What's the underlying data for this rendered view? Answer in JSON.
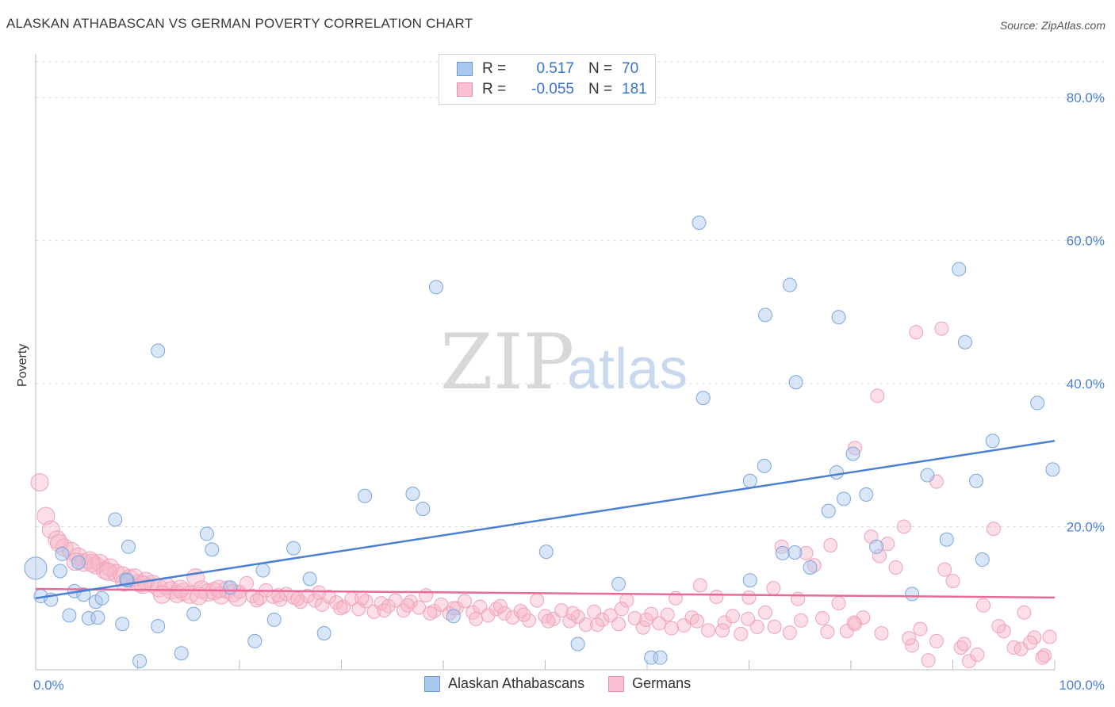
{
  "title": "ALASKAN ATHABASCAN VS GERMAN POVERTY CORRELATION CHART",
  "source": "Source: ZipAtlas.com",
  "watermark": {
    "zip": "ZIP",
    "atlas": "atlas"
  },
  "legend": {
    "series": [
      {
        "name": "Alaskan Athabascans",
        "r_label": "R =",
        "r": "0.517",
        "n_label": "N =",
        "n": "70",
        "color": "#a8c8f0",
        "stroke": "#6a9ad8"
      },
      {
        "name": "Germans",
        "r_label": "R =",
        "r": "-0.055",
        "n_label": "N =",
        "n": "181",
        "color": "#f8c0d0",
        "stroke": "#e890aa"
      }
    ]
  },
  "chart_data": {
    "type": "scatter",
    "title": "ALASKAN ATHABASCAN VS GERMAN POVERTY CORRELATION CHART",
    "xlabel": "",
    "ylabel": "Poverty",
    "xlim": [
      0,
      100
    ],
    "ylim": [
      0,
      85
    ],
    "x_tick_labels": [
      "0.0%",
      "100.0%"
    ],
    "y_ticks": [
      20,
      40,
      60,
      80
    ],
    "y_tick_labels": [
      "20.0%",
      "40.0%",
      "60.0%",
      "80.0%"
    ],
    "grid": true,
    "legend_position": "top-center",
    "series": [
      {
        "name": "Alaskan Athabascans",
        "color": "#4a7fd4",
        "trend": {
          "x": [
            0,
            100
          ],
          "y": [
            10.0,
            32.0
          ]
        },
        "points": [
          [
            0,
            14.2
          ],
          [
            0.5,
            10.3
          ],
          [
            1.5,
            9.8
          ],
          [
            2.4,
            13.8
          ],
          [
            2.6,
            16.2
          ],
          [
            3.3,
            7.6
          ],
          [
            3.8,
            11.0
          ],
          [
            4.2,
            15.0
          ],
          [
            4.7,
            10.5
          ],
          [
            5.2,
            7.2
          ],
          [
            5.9,
            9.5
          ],
          [
            6.1,
            7.3
          ],
          [
            6.5,
            10.0
          ],
          [
            7.8,
            21.0
          ],
          [
            8.5,
            6.4
          ],
          [
            9.1,
            17.2
          ],
          [
            9.0,
            12.5
          ],
          [
            10.2,
            1.2
          ],
          [
            12.0,
            44.6
          ],
          [
            12.0,
            6.1
          ],
          [
            14.3,
            2.3
          ],
          [
            15.5,
            7.8
          ],
          [
            16.8,
            19.0
          ],
          [
            17.3,
            16.8
          ],
          [
            19.1,
            11.5
          ],
          [
            21.5,
            4.0
          ],
          [
            22.3,
            13.9
          ],
          [
            23.4,
            7.0
          ],
          [
            25.3,
            17.0
          ],
          [
            26.9,
            12.7
          ],
          [
            28.3,
            5.1
          ],
          [
            32.3,
            24.3
          ],
          [
            37.0,
            24.6
          ],
          [
            38.0,
            22.5
          ],
          [
            39.3,
            53.5
          ],
          [
            41.0,
            7.5
          ],
          [
            50.1,
            16.5
          ],
          [
            53.2,
            3.6
          ],
          [
            57.2,
            12.0
          ],
          [
            60.4,
            1.7
          ],
          [
            61.3,
            1.7
          ],
          [
            65.1,
            62.5
          ],
          [
            65.5,
            38.0
          ],
          [
            70.1,
            12.5
          ],
          [
            70.1,
            26.4
          ],
          [
            71.5,
            28.5
          ],
          [
            71.6,
            49.6
          ],
          [
            73.3,
            16.3
          ],
          [
            74.0,
            53.8
          ],
          [
            74.6,
            40.2
          ],
          [
            74.5,
            16.4
          ],
          [
            76.0,
            14.3
          ],
          [
            77.8,
            22.2
          ],
          [
            78.6,
            27.6
          ],
          [
            78.8,
            49.3
          ],
          [
            79.3,
            23.9
          ],
          [
            80.2,
            30.2
          ],
          [
            81.5,
            24.5
          ],
          [
            82.5,
            17.2
          ],
          [
            86.0,
            10.6
          ],
          [
            87.5,
            27.2
          ],
          [
            89.4,
            18.2
          ],
          [
            90.6,
            56.0
          ],
          [
            91.2,
            45.8
          ],
          [
            92.3,
            26.4
          ],
          [
            92.9,
            15.4
          ],
          [
            93.9,
            32.0
          ],
          [
            98.3,
            37.3
          ],
          [
            99.8,
            28.0
          ],
          [
            8.9,
            12.6
          ]
        ]
      },
      {
        "name": "Germans",
        "color": "#e86a98",
        "trend": {
          "x": [
            0,
            100
          ],
          "y": [
            11.3,
            10.1
          ]
        },
        "points": [
          [
            0.4,
            26.2
          ],
          [
            1.0,
            21.5
          ],
          [
            1.5,
            19.6
          ],
          [
            2.1,
            18.2
          ],
          [
            2.8,
            17.1
          ],
          [
            3.5,
            16.6
          ],
          [
            4.2,
            15.8
          ],
          [
            4.7,
            15.0
          ],
          [
            5.3,
            15.3
          ],
          [
            5.9,
            14.6
          ],
          [
            6.3,
            14.9
          ],
          [
            6.8,
            13.9
          ],
          [
            7.3,
            14.3
          ],
          [
            7.9,
            13.5
          ],
          [
            8.5,
            13.2
          ],
          [
            9.2,
            12.8
          ],
          [
            9.7,
            12.9
          ],
          [
            10.2,
            12.1
          ],
          [
            10.8,
            12.4
          ],
          [
            11.5,
            12.0
          ],
          [
            12.1,
            11.4
          ],
          [
            12.8,
            11.7
          ],
          [
            13.3,
            11.1
          ],
          [
            13.9,
            10.6
          ],
          [
            14.5,
            10.9
          ],
          [
            15.1,
            10.5
          ],
          [
            15.7,
            12.9
          ],
          [
            16.3,
            11.2
          ],
          [
            16.9,
            10.8
          ],
          [
            17.5,
            11.0
          ],
          [
            18.2,
            10.4
          ],
          [
            18.8,
            11.2
          ],
          [
            19.4,
            10.7
          ],
          [
            20.0,
            10.9
          ],
          [
            20.7,
            12.1
          ],
          [
            21.3,
            10.3
          ],
          [
            22.0,
            10.0
          ],
          [
            22.6,
            11.1
          ],
          [
            23.3,
            10.2
          ],
          [
            24.0,
            9.8
          ],
          [
            24.6,
            10.6
          ],
          [
            25.3,
            10.1
          ],
          [
            26.0,
            9.5
          ],
          [
            26.7,
            10.3
          ],
          [
            27.4,
            9.7
          ],
          [
            28.1,
            9.1
          ],
          [
            28.8,
            10.2
          ],
          [
            29.5,
            9.4
          ],
          [
            30.2,
            8.8
          ],
          [
            31.0,
            9.9
          ],
          [
            31.7,
            8.5
          ],
          [
            32.4,
            9.6
          ],
          [
            33.2,
            8.1
          ],
          [
            33.9,
            9.3
          ],
          [
            34.6,
            8.9
          ],
          [
            35.3,
            9.7
          ],
          [
            36.1,
            8.3
          ],
          [
            36.8,
            9.5
          ],
          [
            37.6,
            8.7
          ],
          [
            38.3,
            10.4
          ],
          [
            39.1,
            8.2
          ],
          [
            39.8,
            9.1
          ],
          [
            40.6,
            7.9
          ],
          [
            41.3,
            8.6
          ],
          [
            42.1,
            9.6
          ],
          [
            42.9,
            8.0
          ],
          [
            43.6,
            8.8
          ],
          [
            44.4,
            7.6
          ],
          [
            45.2,
            8.5
          ],
          [
            46.0,
            7.9
          ],
          [
            46.8,
            7.3
          ],
          [
            47.6,
            8.2
          ],
          [
            48.4,
            6.9
          ],
          [
            49.2,
            9.7
          ],
          [
            50.0,
            7.5
          ],
          [
            50.8,
            7.1
          ],
          [
            51.6,
            8.3
          ],
          [
            52.4,
            6.8
          ],
          [
            53.2,
            7.4
          ],
          [
            54.0,
            6.3
          ],
          [
            54.8,
            8.1
          ],
          [
            55.6,
            7.0
          ],
          [
            56.4,
            7.6
          ],
          [
            57.2,
            6.4
          ],
          [
            58.0,
            9.7
          ],
          [
            58.8,
            7.2
          ],
          [
            59.6,
            5.9
          ],
          [
            60.4,
            7.8
          ],
          [
            61.2,
            6.5
          ],
          [
            62.0,
            7.7
          ],
          [
            62.8,
            10.0
          ],
          [
            63.6,
            6.2
          ],
          [
            64.4,
            7.3
          ],
          [
            65.2,
            11.8
          ],
          [
            66.0,
            5.5
          ],
          [
            66.8,
            10.2
          ],
          [
            67.6,
            6.6
          ],
          [
            68.4,
            7.5
          ],
          [
            69.2,
            5.0
          ],
          [
            70.0,
            10.1
          ],
          [
            70.8,
            6.0
          ],
          [
            71.6,
            8.0
          ],
          [
            72.4,
            11.4
          ],
          [
            73.2,
            17.2
          ],
          [
            74.0,
            5.2
          ],
          [
            74.8,
            9.9
          ],
          [
            75.6,
            16.3
          ],
          [
            76.4,
            14.6
          ],
          [
            77.2,
            7.2
          ],
          [
            78.0,
            17.4
          ],
          [
            78.8,
            9.3
          ],
          [
            79.6,
            5.4
          ],
          [
            80.4,
            6.4
          ],
          [
            81.2,
            7.3
          ],
          [
            82.0,
            18.6
          ],
          [
            82.8,
            15.9
          ],
          [
            83.6,
            17.6
          ],
          [
            84.4,
            14.3
          ],
          [
            85.2,
            20.0
          ],
          [
            86.0,
            3.4
          ],
          [
            86.8,
            5.7
          ],
          [
            87.6,
            1.3
          ],
          [
            88.4,
            26.3
          ],
          [
            89.2,
            14.0
          ],
          [
            90.0,
            12.4
          ],
          [
            90.8,
            3.1
          ],
          [
            91.6,
            1.2
          ],
          [
            92.4,
            2.1
          ],
          [
            93.0,
            9.0
          ],
          [
            94.0,
            19.7
          ],
          [
            95.0,
            5.4
          ],
          [
            96.0,
            3.1
          ],
          [
            97.0,
            8.0
          ],
          [
            98.0,
            4.5
          ],
          [
            99.0,
            2.0
          ],
          [
            80.4,
            31.0
          ],
          [
            82.6,
            38.3
          ],
          [
            86.4,
            47.2
          ],
          [
            88.9,
            47.7
          ],
          [
            2.3,
            17.7
          ],
          [
            3.9,
            15.1
          ],
          [
            5.5,
            14.9
          ],
          [
            7.1,
            13.7
          ],
          [
            8.7,
            12.2
          ],
          [
            10.5,
            11.9
          ],
          [
            12.4,
            10.5
          ],
          [
            14.2,
            11.3
          ],
          [
            16.0,
            10.3
          ],
          [
            18.0,
            11.3
          ],
          [
            19.8,
            10.1
          ],
          [
            21.7,
            9.7
          ],
          [
            23.8,
            10.4
          ],
          [
            25.7,
            9.9
          ],
          [
            27.8,
            10.8
          ],
          [
            29.9,
            8.6
          ],
          [
            32.0,
            10.0
          ],
          [
            34.2,
            8.3
          ],
          [
            36.5,
            9.0
          ],
          [
            38.7,
            7.9
          ],
          [
            41.0,
            8.6
          ],
          [
            43.2,
            7.1
          ],
          [
            45.6,
            8.9
          ],
          [
            47.9,
            7.7
          ],
          [
            50.3,
            6.8
          ],
          [
            52.7,
            7.9
          ],
          [
            55.1,
            6.3
          ],
          [
            57.5,
            8.5
          ],
          [
            59.9,
            7.0
          ],
          [
            62.4,
            5.8
          ],
          [
            64.9,
            6.8
          ],
          [
            67.4,
            5.5
          ],
          [
            69.9,
            7.1
          ],
          [
            72.5,
            6.0
          ],
          [
            75.1,
            6.9
          ],
          [
            77.7,
            5.3
          ],
          [
            80.3,
            6.6
          ],
          [
            83.0,
            5.1
          ],
          [
            85.7,
            4.4
          ],
          [
            88.4,
            4.0
          ],
          [
            91.1,
            3.6
          ],
          [
            94.5,
            6.1
          ],
          [
            96.7,
            2.9
          ],
          [
            98.8,
            1.7
          ],
          [
            97.6,
            3.8
          ],
          [
            99.5,
            4.6
          ]
        ]
      }
    ]
  }
}
